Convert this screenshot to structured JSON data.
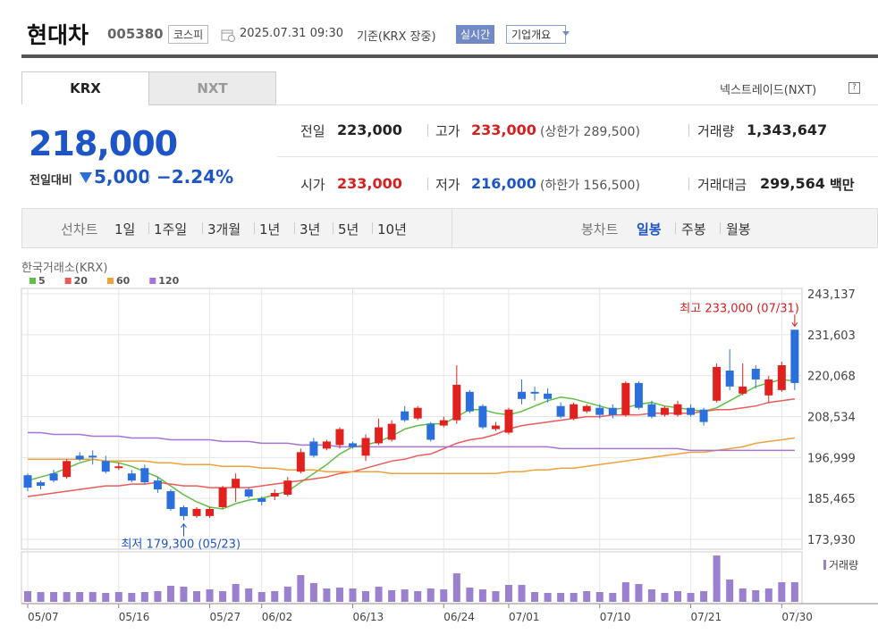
{
  "header": {
    "name": "현대차",
    "code": "005380",
    "market": "코스피",
    "datetime": "2025.07.31 09:30",
    "basis": "기준(KRX 장중)",
    "realtime": "실시간",
    "overview": "기업개요"
  },
  "tabs": [
    "KRX",
    "NXT"
  ],
  "nxt_link": "넥스트레이드(NXT)",
  "price": {
    "current": "218,000",
    "change_label": "전일대비",
    "change": "5,000",
    "change_pct": "−2.24%"
  },
  "quote": {
    "rows": [
      [
        {
          "label": "전일",
          "value": "223,000"
        },
        {
          "label": "고가",
          "value": "233,000",
          "note": "(상한가 289,500)"
        },
        {
          "label": "거래량",
          "value": "1,343,647"
        }
      ],
      [
        {
          "label": "시가",
          "value": "233,000"
        },
        {
          "label": "저가",
          "value": "216,000",
          "note": "(하한가 156,500)"
        },
        {
          "label": "거래대금",
          "value": "299,564",
          "unit": "백만"
        }
      ]
    ]
  },
  "period_bar": {
    "line_label": "선차트",
    "line_periods": [
      "1일",
      "1주일",
      "3개월",
      "1년",
      "3년",
      "5년",
      "10년"
    ],
    "candle_label": "봉차트",
    "candle_periods": [
      "일봉",
      "주봉",
      "월봉"
    ],
    "selected_candle": 0
  },
  "chart_data": {
    "type": "candlestick",
    "source": "한국거래소(KRX)",
    "categories": [
      "05/07",
      null,
      null,
      null,
      null,
      null,
      null,
      "05/16",
      null,
      null,
      null,
      null,
      null,
      null,
      "05/27",
      null,
      null,
      null,
      "06/02",
      null,
      null,
      null,
      null,
      null,
      null,
      "06/13",
      null,
      null,
      null,
      null,
      null,
      null,
      "06/24",
      null,
      null,
      null,
      null,
      "07/01",
      null,
      null,
      null,
      null,
      null,
      null,
      "07/10",
      null,
      null,
      null,
      null,
      null,
      null,
      "07/21",
      null,
      null,
      null,
      null,
      null,
      null,
      "07/30",
      null
    ],
    "open": [
      192000,
      190000,
      192500,
      191500,
      197500,
      197500,
      196000,
      194000,
      192500,
      194000,
      190500,
      187500,
      183000,
      180500,
      180500,
      183000,
      188500,
      188000,
      185500,
      186000,
      186500,
      193000,
      201500,
      199500,
      200500,
      201000,
      197500,
      201000,
      202000,
      210000,
      208000,
      206500,
      206000,
      207500,
      215500,
      211500,
      205000,
      204000,
      215500,
      215500,
      215000,
      211500,
      208000,
      210000,
      211000,
      211000,
      209000,
      218000,
      212000,
      209000,
      209000,
      211000,
      210500,
      213000,
      221500,
      215000,
      222000,
      214500,
      216000,
      233000
    ],
    "high": [
      192500,
      190500,
      193500,
      196500,
      198500,
      199000,
      197500,
      195500,
      193500,
      195000,
      191500,
      188000,
      183500,
      183000,
      183000,
      189000,
      192500,
      188500,
      186000,
      188000,
      191500,
      199500,
      202500,
      202000,
      205500,
      201500,
      203500,
      208000,
      207500,
      211500,
      211500,
      207000,
      208500,
      223000,
      216000,
      212000,
      207000,
      211000,
      219000,
      217000,
      216500,
      212500,
      212500,
      212000,
      212000,
      212000,
      218500,
      218500,
      213000,
      211500,
      213000,
      212000,
      211000,
      223500,
      227500,
      223500,
      223000,
      220000,
      224000,
      233000
    ],
    "low": [
      187500,
      188000,
      190000,
      191000,
      196000,
      195000,
      192500,
      193500,
      190000,
      189500,
      187000,
      182000,
      179300,
      180000,
      180000,
      182500,
      184500,
      185500,
      183500,
      185000,
      186000,
      192500,
      197000,
      199000,
      199500,
      199500,
      196000,
      200500,
      201500,
      207000,
      207500,
      201500,
      205500,
      206500,
      209500,
      205000,
      204500,
      203500,
      212000,
      213000,
      212500,
      208000,
      207500,
      209500,
      208000,
      208000,
      208500,
      210500,
      208000,
      208500,
      208500,
      208500,
      206000,
      212500,
      216000,
      214500,
      216500,
      212500,
      215500,
      216000
    ],
    "close": [
      188500,
      189000,
      190500,
      196000,
      196500,
      197000,
      193000,
      194500,
      190500,
      190000,
      188000,
      182500,
      180500,
      182500,
      182500,
      188500,
      191000,
      186000,
      184500,
      187000,
      190500,
      198500,
      197500,
      201500,
      205000,
      200000,
      202500,
      205500,
      206500,
      207500,
      211000,
      202000,
      207500,
      217500,
      210000,
      205500,
      206000,
      210500,
      213500,
      215000,
      213500,
      208500,
      212000,
      211500,
      209000,
      209000,
      218000,
      211000,
      208500,
      211000,
      212000,
      209000,
      207000,
      222500,
      217000,
      217000,
      219000,
      219000,
      223000,
      218000
    ],
    "up_color": "#e0211d",
    "down_color": "#2a6fdb",
    "series": [
      {
        "name": "5",
        "color": "#5fbf45",
        "values": [
          190500,
          191500,
          192500,
          194000,
          195500,
          196500,
          196000,
          195500,
          194500,
          193000,
          191500,
          189000,
          186500,
          184500,
          183000,
          182500,
          184000,
          185000,
          185500,
          186500,
          187500,
          190000,
          192500,
          195000,
          198000,
          200000,
          200500,
          201500,
          203000,
          205000,
          206000,
          206500,
          206500,
          208500,
          210500,
          210500,
          209500,
          209000,
          210000,
          211500,
          213000,
          214000,
          213500,
          212500,
          211500,
          210500,
          211000,
          212000,
          212500,
          211500,
          211000,
          210500,
          210000,
          211000,
          213000,
          215000,
          217000,
          218000,
          219000,
          218500
        ]
      },
      {
        "name": "20",
        "color": "#ec5a5a",
        "values": [
          186000,
          186500,
          187000,
          187500,
          188000,
          188500,
          189000,
          189000,
          189500,
          189500,
          190000,
          189500,
          189000,
          189000,
          188500,
          188500,
          188500,
          188500,
          189000,
          189500,
          190000,
          190500,
          191000,
          191500,
          192500,
          193000,
          194000,
          195000,
          196000,
          196500,
          197500,
          198000,
          199500,
          201000,
          202000,
          202500,
          203500,
          205000,
          206000,
          206500,
          207000,
          207500,
          208000,
          208500,
          208500,
          209000,
          209000,
          209000,
          209500,
          209500,
          209500,
          209500,
          210000,
          210500,
          210500,
          211000,
          211500,
          212500,
          213000,
          213500
        ]
      },
      {
        "name": "60",
        "color": "#f2a13a",
        "values": [
          196500,
          196500,
          196500,
          196500,
          196500,
          196500,
          196000,
          196000,
          196000,
          196000,
          195500,
          195500,
          195000,
          195000,
          195000,
          194500,
          194500,
          194500,
          194000,
          194000,
          193500,
          193500,
          193500,
          193000,
          193000,
          193000,
          193000,
          193000,
          192500,
          192500,
          192500,
          192500,
          192500,
          192500,
          192500,
          192500,
          192500,
          193000,
          193000,
          193500,
          193500,
          194000,
          194000,
          194500,
          195000,
          195500,
          196000,
          196500,
          197000,
          197500,
          198000,
          198500,
          198500,
          199000,
          199500,
          200000,
          201000,
          201500,
          202000,
          202500
        ]
      },
      {
        "name": "120",
        "color": "#a574d4",
        "values": [
          204000,
          204000,
          203500,
          203500,
          203500,
          203000,
          203000,
          203000,
          202500,
          202500,
          202500,
          202000,
          202000,
          202000,
          202000,
          201500,
          201500,
          201500,
          201000,
          201000,
          201000,
          200500,
          200500,
          200500,
          200000,
          200000,
          200000,
          200000,
          200000,
          200000,
          200000,
          200000,
          200000,
          200000,
          200000,
          200000,
          200000,
          200000,
          200000,
          200000,
          200000,
          199500,
          199500,
          199500,
          199500,
          199500,
          199500,
          199500,
          199500,
          199500,
          199500,
          199000,
          199000,
          199000,
          199000,
          199000,
          199000,
          199000,
          199000,
          199000
        ]
      }
    ],
    "ylim": [
      173930,
      243137
    ],
    "yticks": [
      {
        "value": 243137,
        "label": "243,137"
      },
      {
        "value": 231603,
        "label": "231,603"
      },
      {
        "value": 220068,
        "label": "220,068"
      },
      {
        "value": 208534,
        "label": "208,534"
      },
      {
        "value": 196999,
        "label": "196,999"
      },
      {
        "value": 185465,
        "label": "185,465"
      },
      {
        "value": 173930,
        "label": "173,930"
      }
    ],
    "grid": true,
    "volume": {
      "name": "거래량",
      "color": "#9b80cf",
      "ylim": [
        0,
        3300000
      ],
      "values": [
        732000,
        671000,
        671000,
        671000,
        671000,
        671000,
        610000,
        671000,
        610000,
        671000,
        732000,
        1098000,
        1037000,
        732000,
        854000,
        732000,
        1220000,
        915000,
        671000,
        732000,
        1037000,
        1830000,
        1281000,
        915000,
        976000,
        915000,
        732000,
        1037000,
        793000,
        854000,
        732000,
        915000,
        854000,
        1952000,
        976000,
        854000,
        732000,
        1159000,
        1159000,
        671000,
        610000,
        610000,
        610000,
        732000,
        671000,
        610000,
        1342000,
        1220000,
        854000,
        610000,
        732000,
        610000,
        732000,
        3172000,
        1525000,
        915000,
        793000,
        915000,
        1342000,
        1343647
      ]
    },
    "annotations": {
      "high": "최고 233,000 (07/31)",
      "low": "최저 179,300 (05/23)"
    }
  }
}
